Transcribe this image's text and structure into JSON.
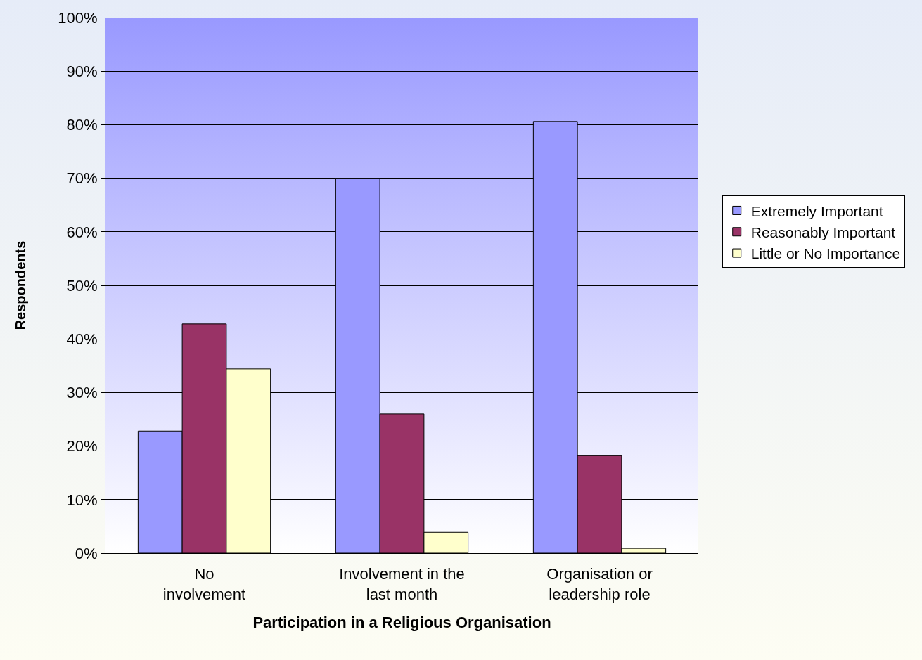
{
  "chart_data": {
    "type": "bar",
    "xlabel": "Participation in a Religious Organisation",
    "ylabel": "Respondents",
    "categories": [
      "No involvement",
      "Involvement in the last month",
      "Organisation or leadership role"
    ],
    "series": [
      {
        "name": "Extremely Important",
        "color": "#9999ff",
        "values": [
          22.8,
          70,
          80.6
        ]
      },
      {
        "name": "Reasonably Important",
        "color": "#993366",
        "values": [
          42.8,
          26,
          18.2
        ]
      },
      {
        "name": "Little or No Importance",
        "color": "#ffffcc",
        "values": [
          34.4,
          3.9,
          0.9
        ]
      }
    ],
    "ylim": [
      0,
      100
    ],
    "yticks": [
      {
        "value": 0,
        "label": "0%"
      },
      {
        "value": 10,
        "label": "10%"
      },
      {
        "value": 20,
        "label": "20%"
      },
      {
        "value": 30,
        "label": "30%"
      },
      {
        "value": 40,
        "label": "40%"
      },
      {
        "value": 50,
        "label": "50%"
      },
      {
        "value": 60,
        "label": "60%"
      },
      {
        "value": 70,
        "label": "70%"
      },
      {
        "value": 80,
        "label": "80%"
      },
      {
        "value": 90,
        "label": "90%"
      },
      {
        "value": 100,
        "label": "100%"
      }
    ],
    "grid": "y",
    "legend": "right"
  }
}
